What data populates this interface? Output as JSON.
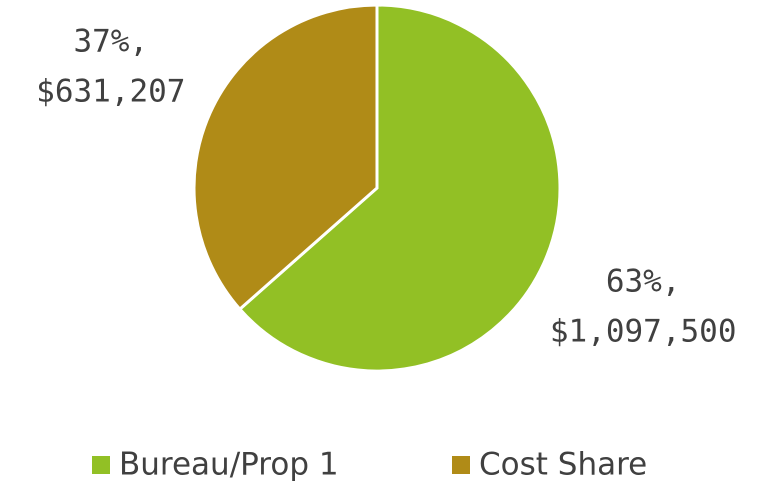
{
  "chart_data": {
    "type": "pie",
    "categories": [
      "Bureau/Prop 1",
      "Cost Share"
    ],
    "values": [
      1097500,
      631207
    ],
    "value_labels": [
      [
        "63%,",
        "$1,097,500"
      ],
      [
        "37%,",
        "$631,207"
      ]
    ],
    "colors": [
      "#92c025",
      "#b08b17"
    ],
    "legend": "bottom"
  }
}
